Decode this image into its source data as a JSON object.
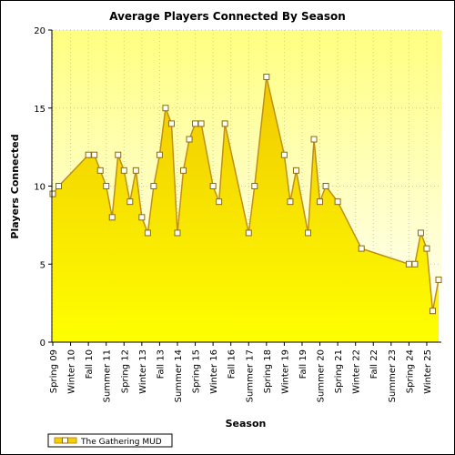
{
  "chart_data": {
    "type": "area",
    "title": "Average Players Connected By Season",
    "xlabel": "Season",
    "ylabel": "Players Connected",
    "ylim": [
      0,
      20
    ],
    "yticks": [
      0,
      5,
      10,
      15,
      20
    ],
    "grid": true,
    "legend_position": "bottom-left",
    "colors": {
      "fill_top": "#f0c800",
      "fill_bottom": "#ffff00",
      "line": "#c09018",
      "marker_fill": "#ffffff",
      "marker_stroke": "#8a6a10",
      "plot_bg_top": "#ffff80",
      "plot_bg_bottom": "#ffffff",
      "grid": "#c8c8c8"
    },
    "x_tick_labels": [
      "Spring 09",
      "Winter 10",
      "Fall 10",
      "Summer 11",
      "Spring 12",
      "Winter 13",
      "Fall 13",
      "Summer 14",
      "Spring 15",
      "Winter 16",
      "Fall 16",
      "Summer 17",
      "Spring 18",
      "Winter 19",
      "Fall 19",
      "Summer 20",
      "Spring 21",
      "Winter 22",
      "Fall 22",
      "Summer 23",
      "Spring 24",
      "Winter 25"
    ],
    "series": [
      {
        "name": "The Gathering MUD",
        "x": [
          "Spring 09",
          "Summer 09",
          "Fall 10",
          "Winter 11",
          "Spring 11",
          "Summer 11",
          "Fall 11",
          "Winter 12",
          "Spring 12",
          "Summer 12",
          "Fall 12",
          "Winter 13",
          "Spring 13",
          "Summer 13",
          "Fall 13",
          "Winter 14",
          "Spring 14",
          "Summer 14",
          "Fall 14",
          "Winter 15",
          "Spring 15",
          "Summer 15",
          "Winter 16",
          "Spring 16",
          "Summer 16",
          "Summer 17",
          "Fall 17",
          "Spring 18",
          "Winter 19",
          "Spring 19",
          "Summer 19",
          "Winter 20",
          "Spring 20",
          "Summer 20",
          "Fall 20",
          "Spring 21",
          "Spring 22",
          "Spring 24",
          "Summer 24",
          "Fall 24",
          "Winter 25",
          "Spring 25",
          "Summer 25"
        ],
        "values": [
          9.5,
          10,
          12,
          12,
          11,
          10,
          8,
          12,
          11,
          9,
          11,
          8,
          7,
          10,
          12,
          15,
          14,
          7,
          11,
          13,
          14,
          14,
          10,
          9,
          14,
          7,
          10,
          17,
          12,
          9,
          11,
          7,
          13,
          9,
          10,
          9,
          6,
          5,
          5,
          7,
          6,
          2,
          4
        ]
      }
    ]
  }
}
